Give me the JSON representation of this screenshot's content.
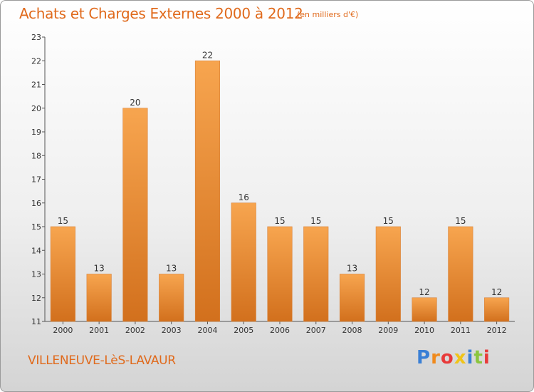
{
  "header": {
    "title": "Achats et Charges Externes 2000 à 2012",
    "subtitle": "(en milliers d'€)"
  },
  "footer": {
    "city": "VILLENEUVE-LèS-LAVAUR",
    "brand_letters": [
      "P",
      "r",
      "o",
      "x",
      "i",
      "t",
      "i"
    ],
    "brand_colors": [
      "#3a7fd5",
      "#f08a1c",
      "#e83a3a",
      "#f0c419",
      "#3a7fd5",
      "#8bc53f",
      "#e83a3a"
    ]
  },
  "colors": {
    "bar_top": "#f7a54f",
    "bar_bottom": "#d2701d",
    "text_accent": "#e06a1c"
  },
  "chart_data": {
    "type": "bar",
    "title": "Achats et Charges Externes 2000 à 2012",
    "subtitle": "(en milliers d'€)",
    "categories": [
      "2000",
      "2001",
      "2002",
      "2003",
      "2004",
      "2005",
      "2006",
      "2007",
      "2008",
      "2009",
      "2010",
      "2011",
      "2012"
    ],
    "values": [
      15,
      13,
      20,
      13,
      22,
      16,
      15,
      15,
      13,
      15,
      12,
      15,
      12
    ],
    "value_labels": [
      "15",
      "13",
      "20",
      "13",
      "22",
      "16",
      "15",
      "15",
      "13",
      "15",
      "12",
      "15",
      "12"
    ],
    "y_ticks": [
      "11",
      "12",
      "13",
      "14",
      "15",
      "16",
      "17",
      "18",
      "19",
      "20",
      "21",
      "22",
      "23"
    ],
    "ylim": [
      11,
      23
    ],
    "xlabel": "",
    "ylabel": "",
    "grid": false,
    "legend": "none"
  }
}
